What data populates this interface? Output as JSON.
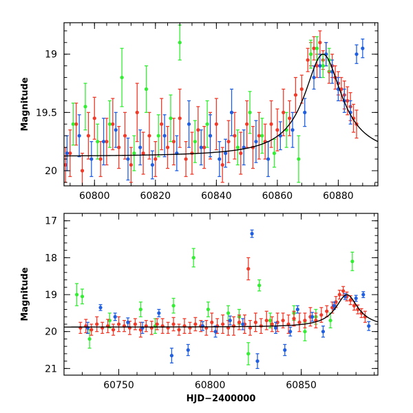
{
  "chart_data": [
    {
      "type": "scatter",
      "panel": "top",
      "xlabel": "",
      "ylabel": "Magnitude",
      "xlim": [
        60790,
        60893
      ],
      "ylim": [
        20.13,
        18.73
      ],
      "y_inverted": true,
      "xticks": [
        60800,
        60820,
        60840,
        60860,
        60880
      ],
      "yticks": [
        19,
        19.5,
        20
      ],
      "grid": false,
      "colors": {
        "green": "#33ee33",
        "red": "#f03a2a",
        "blue": "#1f5fe0",
        "model": "#000000"
      },
      "series": [
        {
          "color_role": "red",
          "x": [
            60790.5,
            60792,
            60794,
            60796,
            60798,
            60800,
            60802,
            60804,
            60806,
            60808,
            60810,
            60812,
            60814,
            60816,
            60818,
            60820,
            60822,
            60824,
            60826,
            60828,
            60830,
            60832,
            60834,
            60836,
            60838,
            60840,
            60842,
            60844,
            60846,
            60848,
            60850,
            60852,
            60854,
            60856,
            60858,
            60860,
            60862,
            60864,
            60866,
            60868,
            60870,
            60871,
            60872,
            60873,
            60874,
            60875,
            60876,
            60877,
            60878,
            60879,
            60880,
            60881,
            60882,
            60883,
            60884,
            60885,
            60886
          ],
          "y": [
            19.95,
            19.85,
            19.6,
            20.0,
            19.7,
            19.55,
            19.9,
            19.75,
            19.6,
            19.8,
            19.7,
            19.95,
            19.5,
            19.85,
            19.7,
            19.9,
            19.6,
            19.8,
            19.75,
            19.55,
            19.9,
            19.85,
            19.65,
            19.8,
            19.7,
            19.6,
            19.95,
            19.75,
            19.7,
            19.85,
            19.6,
            19.8,
            19.7,
            19.75,
            19.6,
            19.65,
            19.5,
            19.55,
            19.35,
            19.3,
            19.05,
            19.0,
            18.95,
            19.1,
            18.9,
            19.05,
            19.0,
            19.15,
            19.1,
            19.2,
            19.25,
            19.3,
            19.35,
            19.4,
            19.45,
            19.55,
            19.6
          ],
          "err": [
            0.15,
            0.2,
            0.18,
            0.15,
            0.2,
            0.18,
            0.15,
            0.2,
            0.22,
            0.18,
            0.2,
            0.15,
            0.25,
            0.18,
            0.2,
            0.15,
            0.22,
            0.18,
            0.2,
            0.25,
            0.15,
            0.18,
            0.2,
            0.18,
            0.2,
            0.22,
            0.15,
            0.18,
            0.2,
            0.18,
            0.2,
            0.18,
            0.2,
            0.15,
            0.2,
            0.18,
            0.2,
            0.15,
            0.15,
            0.12,
            0.1,
            0.1,
            0.1,
            0.1,
            0.1,
            0.08,
            0.1,
            0.1,
            0.1,
            0.1,
            0.1,
            0.1,
            0.12,
            0.12,
            0.12,
            0.12,
            0.12
          ]
        },
        {
          "color_role": "blue",
          "x": [
            60791,
            60795,
            60799,
            60803,
            60807,
            60811,
            60815,
            60819,
            60823,
            60827,
            60831,
            60835,
            60838,
            60841,
            60843,
            60845,
            60849,
            60853,
            60857,
            60861,
            60865,
            60869,
            60872,
            60874,
            60876,
            60878,
            60880,
            60882,
            60884,
            60886,
            60888
          ],
          "y": [
            19.85,
            19.7,
            19.9,
            19.75,
            19.65,
            19.9,
            19.8,
            19.95,
            19.7,
            19.85,
            19.6,
            19.8,
            19.7,
            19.9,
            19.85,
            19.5,
            19.8,
            19.75,
            19.9,
            19.7,
            19.65,
            19.5,
            19.2,
            19.1,
            19.0,
            19.15,
            19.3,
            19.4,
            19.5,
            19.0,
            18.95
          ],
          "err": [
            0.15,
            0.18,
            0.15,
            0.2,
            0.15,
            0.18,
            0.15,
            0.12,
            0.18,
            0.15,
            0.2,
            0.15,
            0.18,
            0.15,
            0.12,
            0.2,
            0.15,
            0.18,
            0.15,
            0.12,
            0.15,
            0.12,
            0.1,
            0.1,
            0.1,
            0.1,
            0.1,
            0.1,
            0.1,
            0.08,
            0.08
          ]
        },
        {
          "color_role": "green",
          "x": [
            60793,
            60797,
            60801,
            60805,
            60809,
            60813,
            60817,
            60821,
            60825,
            60828,
            60833,
            60837,
            60847,
            60851,
            60855,
            60859,
            60863,
            60867,
            60871,
            60873,
            60875,
            60877
          ],
          "y": [
            19.6,
            19.45,
            19.75,
            19.6,
            19.2,
            19.85,
            19.3,
            19.7,
            19.55,
            18.9,
            19.75,
            19.6,
            19.8,
            19.5,
            19.7,
            19.85,
            19.65,
            19.9,
            19.0,
            18.95,
            19.1,
            19.05
          ],
          "err": [
            0.18,
            0.2,
            0.15,
            0.2,
            0.25,
            0.15,
            0.2,
            0.18,
            0.2,
            0.15,
            0.18,
            0.2,
            0.15,
            0.18,
            0.15,
            0.12,
            0.15,
            0.2,
            0.12,
            0.1,
            0.1,
            0.1
          ]
        }
      ],
      "model_curve": {
        "baseline": 19.88,
        "peak_x": 60875,
        "peak_y": 19.0,
        "width": 7.5
      }
    },
    {
      "type": "scatter",
      "panel": "bottom",
      "xlabel": "HJD−2400000",
      "ylabel": "Magnitude",
      "xlim": [
        60720,
        60892
      ],
      "ylim": [
        21.18,
        16.8
      ],
      "y_inverted": true,
      "xticks": [
        60750,
        60800,
        60850
      ],
      "yticks": [
        17,
        18,
        19,
        20,
        21
      ],
      "grid": false,
      "colors": {
        "green": "#33ee33",
        "red": "#f03a2a",
        "blue": "#1f5fe0",
        "model": "#000000"
      },
      "series": [
        {
          "color_role": "green",
          "x": [
            60727,
            60730,
            60734,
            60745,
            60762,
            60770,
            60780,
            60791,
            60799,
            60810,
            60816,
            60821,
            60827,
            60833,
            60846,
            60852,
            60858,
            60866,
            60878
          ],
          "y": [
            19.0,
            19.05,
            20.2,
            19.7,
            19.4,
            19.85,
            19.3,
            18.0,
            19.4,
            19.5,
            19.6,
            20.6,
            18.75,
            19.7,
            19.5,
            20.0,
            19.6,
            19.7,
            18.1
          ],
          "err": [
            0.3,
            0.2,
            0.25,
            0.2,
            0.2,
            0.2,
            0.2,
            0.25,
            0.2,
            0.2,
            0.2,
            0.3,
            0.15,
            0.2,
            0.2,
            0.25,
            0.2,
            0.2,
            0.25
          ]
        },
        {
          "color_role": "red",
          "x": [
            60729,
            60732,
            60735,
            60738,
            60741,
            60744,
            60747,
            60750,
            60753,
            60756,
            60759,
            60762,
            60765,
            60768,
            60771,
            60774,
            60777,
            60780,
            60783,
            60786,
            60789,
            60792,
            60795,
            60798,
            60801,
            60804,
            60807,
            60810,
            60813,
            60816,
            60819,
            60821,
            60822,
            60825,
            60828,
            60831,
            60834,
            60837,
            60840,
            60843,
            60846,
            60849,
            60852,
            60855,
            60858,
            60861,
            60864,
            60867,
            60869,
            60871,
            60873,
            60875,
            60877,
            60879,
            60881,
            60883,
            60885
          ],
          "y": [
            19.9,
            19.85,
            19.95,
            19.8,
            19.9,
            19.85,
            19.95,
            19.8,
            19.85,
            19.9,
            19.8,
            19.95,
            19.85,
            19.9,
            19.8,
            19.85,
            19.9,
            19.8,
            19.95,
            19.85,
            19.9,
            19.8,
            19.85,
            19.9,
            19.75,
            19.85,
            19.8,
            19.9,
            19.85,
            19.75,
            19.8,
            18.3,
            19.9,
            19.75,
            19.85,
            19.7,
            19.8,
            19.75,
            19.7,
            19.8,
            19.65,
            19.75,
            19.7,
            19.6,
            19.7,
            19.55,
            19.45,
            19.35,
            19.2,
            19.0,
            18.9,
            19.05,
            19.15,
            19.3,
            19.4,
            19.5,
            19.6
          ],
          "err": [
            0.15,
            0.18,
            0.15,
            0.2,
            0.15,
            0.18,
            0.15,
            0.2,
            0.15,
            0.18,
            0.15,
            0.2,
            0.15,
            0.18,
            0.15,
            0.2,
            0.15,
            0.18,
            0.15,
            0.2,
            0.15,
            0.18,
            0.15,
            0.2,
            0.25,
            0.2,
            0.25,
            0.2,
            0.25,
            0.2,
            0.25,
            0.3,
            0.2,
            0.25,
            0.2,
            0.25,
            0.2,
            0.25,
            0.2,
            0.25,
            0.2,
            0.25,
            0.2,
            0.25,
            0.2,
            0.2,
            0.15,
            0.15,
            0.15,
            0.12,
            0.12,
            0.12,
            0.12,
            0.12,
            0.12,
            0.12,
            0.15
          ]
        },
        {
          "color_role": "blue",
          "x": [
            60733,
            60740,
            60748,
            60755,
            60763,
            60772,
            60779,
            60788,
            60796,
            60803,
            60811,
            60818,
            60823,
            60826,
            60836,
            60841,
            60844,
            60848,
            60856,
            60862,
            60868,
            60874,
            60880,
            60884,
            60887
          ],
          "y": [
            19.9,
            19.35,
            19.6,
            19.75,
            19.9,
            19.5,
            20.65,
            20.5,
            19.85,
            20.0,
            19.7,
            19.8,
            17.35,
            20.8,
            19.9,
            20.5,
            20.0,
            19.4,
            19.6,
            20.0,
            19.3,
            19.05,
            19.1,
            19.0,
            19.85
          ],
          "err": [
            0.15,
            0.08,
            0.1,
            0.12,
            0.15,
            0.1,
            0.2,
            0.15,
            0.12,
            0.15,
            0.12,
            0.15,
            0.1,
            0.2,
            0.15,
            0.15,
            0.12,
            0.1,
            0.12,
            0.15,
            0.1,
            0.08,
            0.08,
            0.08,
            0.12
          ]
        }
      ],
      "model_curve": {
        "baseline": 19.88,
        "peak_x": 60875,
        "peak_y": 19.0,
        "width": 7.5
      }
    }
  ]
}
